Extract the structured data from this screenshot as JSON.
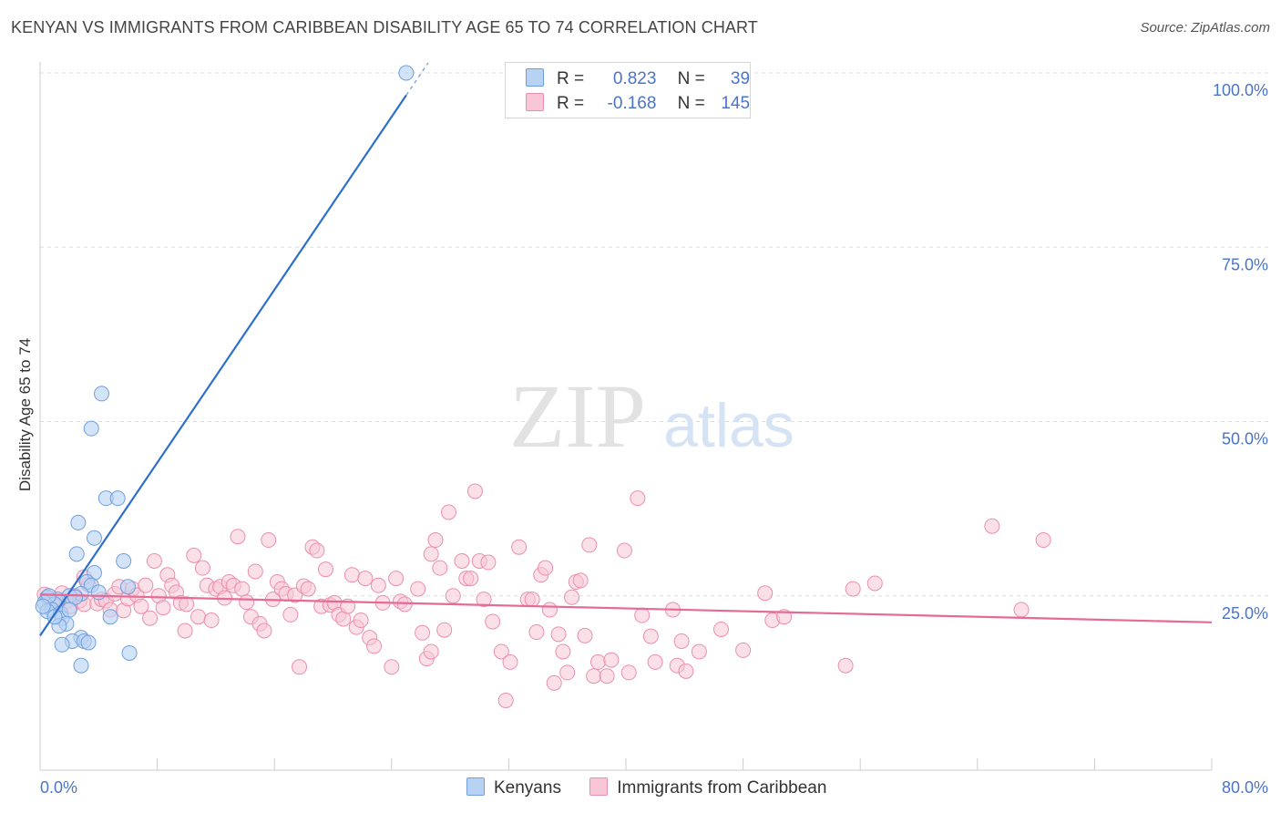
{
  "title": "KENYAN VS IMMIGRANTS FROM CARIBBEAN DISABILITY AGE 65 TO 74 CORRELATION CHART",
  "source": "Source: ZipAtlas.com",
  "watermark": {
    "zip": "ZIP",
    "atlas": "atlas"
  },
  "colors": {
    "kenyan_fill": "#b8d2f4",
    "kenyan_stroke": "#6e9fdc",
    "kenyan_line": "#2e6fcc",
    "carib_fill": "#f8c6d6",
    "carib_stroke": "#ea8fae",
    "carib_line": "#e56a95",
    "axis_label": "#4a74c9",
    "grid": "#dddddd"
  },
  "legend": {
    "rows": [
      {
        "r_label": "R =",
        "r_value": "0.823",
        "n_label": "N =",
        "n_value": "39"
      },
      {
        "r_label": "R =",
        "r_value": "-0.168",
        "n_label": "N =",
        "n_value": "145"
      }
    ]
  },
  "bottom_legend": {
    "kenyans": "Kenyans",
    "caribbean": "Immigrants from Caribbean"
  },
  "chart_data": {
    "type": "scatter",
    "title": "KENYAN VS IMMIGRANTS FROM CARIBBEAN DISABILITY AGE 65 TO 74 CORRELATION CHART",
    "xlabel": "",
    "ylabel": "Disability Age 65 to 74",
    "xlim": [
      0,
      80
    ],
    "ylim": [
      0,
      100
    ],
    "x_tick_labels": [
      "0.0%",
      "80.0%"
    ],
    "y_ticks": [
      25,
      50,
      75,
      100
    ],
    "y_tick_labels": [
      "25.0%",
      "50.0%",
      "75.0%",
      "100.0%"
    ],
    "grid": true,
    "series": [
      {
        "name": "Kenyans",
        "r": 0.823,
        "n": 39,
        "trend": {
          "x0": 0,
          "y0": 19.3,
          "x1": 25.0,
          "y1": 96.8,
          "dash_to_x": 26.5
        },
        "points": [
          [
            25.0,
            100.0
          ],
          [
            4.2,
            54.0
          ],
          [
            3.5,
            49.0
          ],
          [
            4.5,
            39.0
          ],
          [
            5.3,
            39.0
          ],
          [
            2.6,
            35.5
          ],
          [
            3.7,
            33.3
          ],
          [
            2.5,
            31.0
          ],
          [
            5.7,
            30.0
          ],
          [
            3.7,
            28.3
          ],
          [
            3.2,
            27.0
          ],
          [
            3.5,
            26.5
          ],
          [
            6.0,
            26.3
          ],
          [
            2.8,
            25.3
          ],
          [
            2.0,
            25.0
          ],
          [
            1.2,
            24.5
          ],
          [
            0.5,
            24.8
          ],
          [
            0.3,
            24.0
          ],
          [
            1.0,
            23.8
          ],
          [
            0.8,
            23.0
          ],
          [
            0.5,
            22.8
          ],
          [
            1.4,
            22.5
          ],
          [
            1.5,
            21.8
          ],
          [
            1.8,
            21.0
          ],
          [
            1.3,
            20.7
          ],
          [
            2.8,
            19.0
          ],
          [
            2.2,
            18.5
          ],
          [
            3.0,
            18.5
          ],
          [
            3.3,
            18.3
          ],
          [
            4.8,
            22.0
          ],
          [
            1.5,
            18.0
          ],
          [
            6.1,
            16.8
          ],
          [
            2.8,
            15.0
          ],
          [
            0.6,
            25.0
          ],
          [
            2.4,
            24.8
          ],
          [
            4.0,
            25.5
          ],
          [
            1.0,
            22.0
          ],
          [
            0.2,
            23.5
          ],
          [
            2.0,
            23.0
          ]
        ]
      },
      {
        "name": "Immigrants from Caribbean",
        "r": -0.168,
        "n": 145,
        "trend": {
          "x0": 0,
          "y0": 25.2,
          "x1": 80.0,
          "y1": 21.2
        },
        "points": [
          [
            0.3,
            25.2
          ],
          [
            0.6,
            24.6
          ],
          [
            0.9,
            24.0
          ],
          [
            1.2,
            23.6
          ],
          [
            1.5,
            25.4
          ],
          [
            1.8,
            24.2
          ],
          [
            2.1,
            23.5
          ],
          [
            2.4,
            25.0
          ],
          [
            2.7,
            24.3
          ],
          [
            3.0,
            23.8
          ],
          [
            3.3,
            26.6
          ],
          [
            3.0,
            27.7
          ],
          [
            3.9,
            23.9
          ],
          [
            4.2,
            24.5
          ],
          [
            4.5,
            24.3
          ],
          [
            4.8,
            23.0
          ],
          [
            5.1,
            25.3
          ],
          [
            5.4,
            26.3
          ],
          [
            5.7,
            22.9
          ],
          [
            6.0,
            24.6
          ],
          [
            6.3,
            26.0
          ],
          [
            6.6,
            25.1
          ],
          [
            6.9,
            23.5
          ],
          [
            7.2,
            26.5
          ],
          [
            7.5,
            21.8
          ],
          [
            7.8,
            30.0
          ],
          [
            8.1,
            25.0
          ],
          [
            8.4,
            23.3
          ],
          [
            8.7,
            28.0
          ],
          [
            9.0,
            26.5
          ],
          [
            9.3,
            25.5
          ],
          [
            9.6,
            24.0
          ],
          [
            9.9,
            20.0
          ],
          [
            10.5,
            30.8
          ],
          [
            10.8,
            22.0
          ],
          [
            11.1,
            29.0
          ],
          [
            11.4,
            26.5
          ],
          [
            11.7,
            21.5
          ],
          [
            12.0,
            26.0
          ],
          [
            12.3,
            26.3
          ],
          [
            12.6,
            24.7
          ],
          [
            12.9,
            27.0
          ],
          [
            13.2,
            26.5
          ],
          [
            13.5,
            33.5
          ],
          [
            13.8,
            26.0
          ],
          [
            14.1,
            24.1
          ],
          [
            14.4,
            22.0
          ],
          [
            14.7,
            28.5
          ],
          [
            15.0,
            21.0
          ],
          [
            15.3,
            20.0
          ],
          [
            15.6,
            33.0
          ],
          [
            15.9,
            24.5
          ],
          [
            16.2,
            27.0
          ],
          [
            16.5,
            26.0
          ],
          [
            16.8,
            25.3
          ],
          [
            17.1,
            22.3
          ],
          [
            17.4,
            25.1
          ],
          [
            17.7,
            14.8
          ],
          [
            18.0,
            26.4
          ],
          [
            18.3,
            26.0
          ],
          [
            18.6,
            32.0
          ],
          [
            18.9,
            31.5
          ],
          [
            19.2,
            23.5
          ],
          [
            19.5,
            28.8
          ],
          [
            19.8,
            23.7
          ],
          [
            20.1,
            24.0
          ],
          [
            20.4,
            22.3
          ],
          [
            20.7,
            21.7
          ],
          [
            21.0,
            23.5
          ],
          [
            21.3,
            28.0
          ],
          [
            21.6,
            20.5
          ],
          [
            21.9,
            21.5
          ],
          [
            22.2,
            27.5
          ],
          [
            22.5,
            19.0
          ],
          [
            22.8,
            17.8
          ],
          [
            23.1,
            26.5
          ],
          [
            23.4,
            24.0
          ],
          [
            24.0,
            14.8
          ],
          [
            24.3,
            27.5
          ],
          [
            24.6,
            24.2
          ],
          [
            24.9,
            23.8
          ],
          [
            25.8,
            26.0
          ],
          [
            26.1,
            19.7
          ],
          [
            26.4,
            16.0
          ],
          [
            26.7,
            17.0
          ],
          [
            26.7,
            31.0
          ],
          [
            27.0,
            33.0
          ],
          [
            27.3,
            29.0
          ],
          [
            27.6,
            20.1
          ],
          [
            27.9,
            37.0
          ],
          [
            28.2,
            25.0
          ],
          [
            28.8,
            30.0
          ],
          [
            29.1,
            27.5
          ],
          [
            29.4,
            27.5
          ],
          [
            29.7,
            40.0
          ],
          [
            30.0,
            30.0
          ],
          [
            30.3,
            24.5
          ],
          [
            30.6,
            29.8
          ],
          [
            30.9,
            21.3
          ],
          [
            31.5,
            17.0
          ],
          [
            31.8,
            10.0
          ],
          [
            32.1,
            15.5
          ],
          [
            32.7,
            32.0
          ],
          [
            33.3,
            24.5
          ],
          [
            33.6,
            24.5
          ],
          [
            33.9,
            19.8
          ],
          [
            34.2,
            28.0
          ],
          [
            34.5,
            29.0
          ],
          [
            34.8,
            23.0
          ],
          [
            35.1,
            12.5
          ],
          [
            35.4,
            19.5
          ],
          [
            35.7,
            17.0
          ],
          [
            36.0,
            14.0
          ],
          [
            36.3,
            24.8
          ],
          [
            36.6,
            27.0
          ],
          [
            36.9,
            27.2
          ],
          [
            37.2,
            19.3
          ],
          [
            37.5,
            32.3
          ],
          [
            37.8,
            13.5
          ],
          [
            38.1,
            15.5
          ],
          [
            38.7,
            13.5
          ],
          [
            39.0,
            15.8
          ],
          [
            39.9,
            31.5
          ],
          [
            40.2,
            14.0
          ],
          [
            41.1,
            22.2
          ],
          [
            40.8,
            39.0
          ],
          [
            41.7,
            19.2
          ],
          [
            42.0,
            15.5
          ],
          [
            43.2,
            23.0
          ],
          [
            43.5,
            15.0
          ],
          [
            43.8,
            18.5
          ],
          [
            44.1,
            14.2
          ],
          [
            45.0,
            17.0
          ],
          [
            46.5,
            20.2
          ],
          [
            48.0,
            17.2
          ],
          [
            49.5,
            25.4
          ],
          [
            50.0,
            21.5
          ],
          [
            50.8,
            22.0
          ],
          [
            55.0,
            15.0
          ],
          [
            57.0,
            26.8
          ],
          [
            65.0,
            35.0
          ],
          [
            67.0,
            23.0
          ],
          [
            68.5,
            33.0
          ],
          [
            55.5,
            26.0
          ],
          [
            10.0,
            23.8
          ]
        ]
      }
    ]
  }
}
